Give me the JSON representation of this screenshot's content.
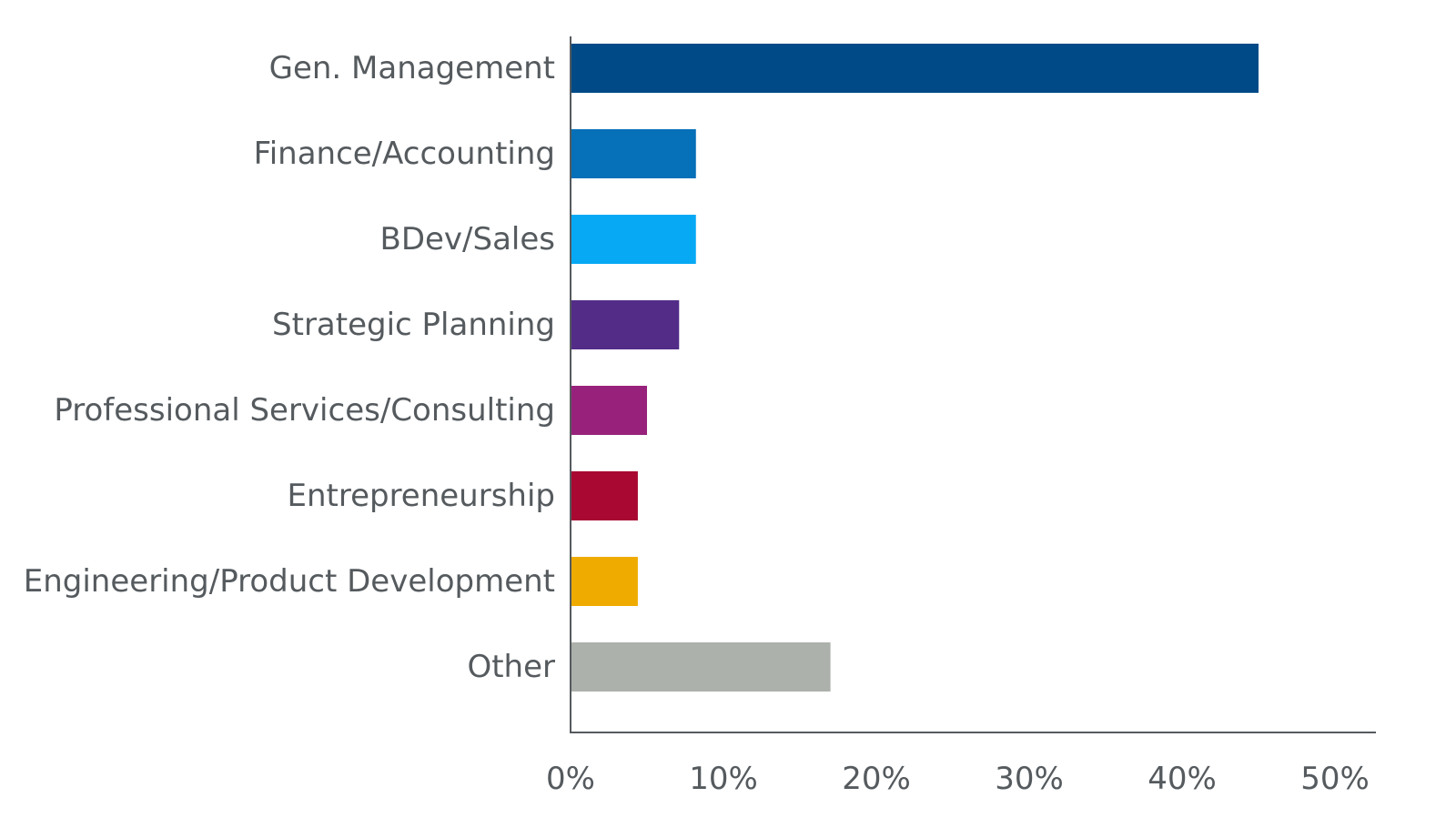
{
  "chart_data": {
    "type": "bar",
    "orientation": "horizontal",
    "title": "",
    "xlabel": "",
    "ylabel": "",
    "xlim": [
      0,
      52
    ],
    "x_ticks": [
      0,
      10,
      20,
      30,
      40,
      50
    ],
    "x_tick_labels": [
      "0%",
      "10%",
      "20%",
      "30%",
      "40%",
      "50%"
    ],
    "grid": false,
    "legend": "none",
    "categories": [
      "Gen. Management",
      "Finance/Accounting",
      "BDev/Sales",
      "Strategic Planning",
      "Professional Services/Consulting",
      "Entrepreneurship",
      "Engineering/Product Development",
      "Other"
    ],
    "values": [
      45,
      8.2,
      8.2,
      7.1,
      5.0,
      4.4,
      4.4,
      17.0
    ],
    "colors": [
      "#004a87",
      "#0670b8",
      "#07a9f5",
      "#532c88",
      "#98227b",
      "#a80832",
      "#efab00",
      "#adb1ab"
    ]
  }
}
